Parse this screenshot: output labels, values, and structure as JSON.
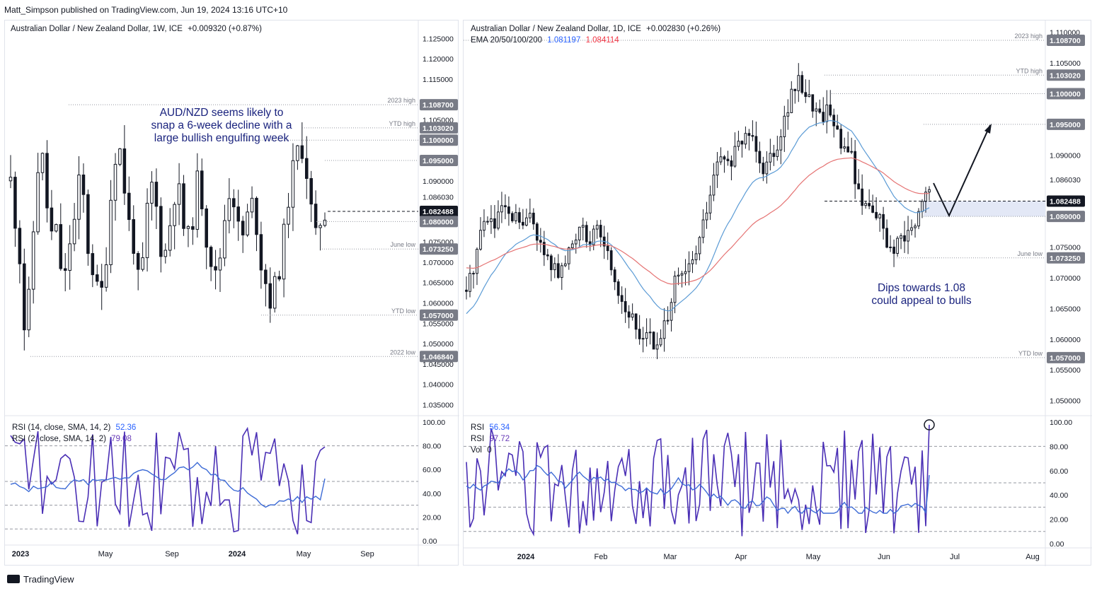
{
  "publisher": "Matt_Simpson published on TradingView.com, Jun 19, 2024 13:16 UTC+10",
  "footer_brand": "TradingView",
  "colors": {
    "up": "#131722",
    "down": "#131722",
    "ema20": "#5b9bd5",
    "ema50": "#e57373",
    "rsi14": "#3d6bd6",
    "rsi2": "#4a2fb5",
    "price_label_bg": "#787b86",
    "current_label_bg": "#131722",
    "zone": "#e3e8f6"
  },
  "left": {
    "title": "Australian Dollar / New Zealand Dollar, 1W, ICE",
    "change": "+0.009320 (+0.87%)",
    "annotation": [
      "AUD/NZD seems likely to",
      "snap a 6-week decline with a",
      "large bullish engulfing week"
    ],
    "y_ticks": [
      "1.125000",
      "1.120000",
      "1.115000",
      "1.105000",
      "1.090000",
      "1.086030",
      "1.075000",
      "1.070000",
      "1.065000",
      "1.060000",
      "1.055000",
      "1.050000",
      "1.045000",
      "1.040000",
      "1.035000"
    ],
    "levels": [
      {
        "name": "2023 high",
        "value": "1.108700"
      },
      {
        "name": "YTD high",
        "value": "1.103020"
      },
      {
        "name": "",
        "value": "1.100000"
      },
      {
        "name": "",
        "value": "1.095000"
      },
      {
        "name": "",
        "value": "1.082488"
      },
      {
        "name": "",
        "value": "1.080000"
      },
      {
        "name": "June low",
        "value": "1.073250"
      },
      {
        "name": "YTD low",
        "value": "1.057000"
      },
      {
        "name": "2022 low",
        "value": "1.046840"
      }
    ],
    "x_ticks": [
      "2023",
      "May",
      "Sep",
      "2024",
      "May",
      "Sep"
    ],
    "rsi_legend": [
      {
        "label": "RSI (14, close, SMA, 14, 2)",
        "value": "52.36"
      },
      {
        "label": "RSI (2, close, SMA, 14, 2)",
        "value": "79.08"
      }
    ],
    "rsi_ticks": [
      "100.00",
      "80.00",
      "60.00",
      "40.00",
      "20.00",
      "0.00"
    ]
  },
  "right": {
    "title": "Australian Dollar / New Zealand Dollar, 1D, ICE",
    "change": "+0.002830 (+0.26%)",
    "ema_label": "EMA 20/50/100/200",
    "ema_values": [
      "1.081197",
      "1.084114"
    ],
    "annotation": [
      "Dips towards 1.08",
      "could appeal to bulls"
    ],
    "y_ticks": [
      "1.110000",
      "1.105000",
      "1.090000",
      "1.086030",
      "1.075000",
      "1.070000",
      "1.065000",
      "1.060000",
      "1.055000",
      "1.050000"
    ],
    "levels": [
      {
        "name": "2023 high",
        "value": "1.108700"
      },
      {
        "name": "YTD high",
        "value": "1.103020"
      },
      {
        "name": "",
        "value": "1.100000"
      },
      {
        "name": "",
        "value": "1.095000"
      },
      {
        "name": "",
        "value": "1.082488"
      },
      {
        "name": "",
        "value": "1.080000"
      },
      {
        "name": "June low",
        "value": "1.073250"
      },
      {
        "name": "YTD low",
        "value": "1.057000"
      }
    ],
    "x_ticks": [
      "2024",
      "Feb",
      "Mar",
      "Apr",
      "May",
      "Jun",
      "Jul",
      "Aug"
    ],
    "rsi_legend": [
      {
        "label": "RSI",
        "value": "56.34"
      },
      {
        "label": "RSI",
        "value": "97.72"
      },
      {
        "label": "Vol",
        "value": "0"
      }
    ],
    "rsi_ticks": [
      "100.00",
      "80.00",
      "60.00",
      "40.00",
      "20.00",
      "0.00"
    ]
  },
  "chart_data": [
    {
      "type": "candlestick",
      "title": "Australian Dollar / New Zealand Dollar, 1W, ICE",
      "timeframe": "1W",
      "ylim": [
        1.033,
        1.128
      ],
      "x": [
        "2023",
        "May",
        "Sep",
        "2024",
        "May",
        "Sep"
      ],
      "levels": [
        1.1087,
        1.10302,
        1.1,
        1.095,
        1.082488,
        1.08,
        1.07325,
        1.057,
        1.04684
      ],
      "close_path": [
        1.09,
        1.08,
        1.07,
        1.05,
        1.065,
        1.085,
        1.1,
        1.09,
        1.075,
        1.08,
        1.07,
        1.065,
        1.075,
        1.08,
        1.09,
        1.085,
        1.07,
        1.068,
        1.06,
        1.065,
        1.08,
        1.095,
        1.1,
        1.09,
        1.08,
        1.075,
        1.065,
        1.07,
        1.085,
        1.09,
        1.08,
        1.07,
        1.075,
        1.085,
        1.09,
        1.08,
        1.075,
        1.08,
        1.09,
        1.085,
        1.075,
        1.07,
        1.065,
        1.075,
        1.085,
        1.09,
        1.08,
        1.075,
        1.08,
        1.085,
        1.08,
        1.07,
        1.065,
        1.06,
        1.065,
        1.07,
        1.08,
        1.09,
        1.095,
        1.1,
        1.095,
        1.085,
        1.075,
        1.08,
        1.082
      ],
      "rsi14_last": 52.36,
      "rsi2_last": 79.08
    },
    {
      "type": "candlestick",
      "title": "Australian Dollar / New Zealand Dollar, 1D, ICE",
      "timeframe": "1D",
      "ylim": [
        1.048,
        1.111
      ],
      "x": [
        "2024",
        "Feb",
        "Mar",
        "Apr",
        "May",
        "Jun",
        "Jul",
        "Aug"
      ],
      "levels": [
        1.1087,
        1.10302,
        1.1,
        1.095,
        1.082488,
        1.08,
        1.07325,
        1.057
      ],
      "zone": [
        1.08,
        1.0825
      ],
      "ema": [
        {
          "period": 20,
          "last": 1.081197
        },
        {
          "period": 50,
          "last": 1.084114
        }
      ],
      "close_path": [
        1.068,
        1.072,
        1.078,
        1.08,
        1.078,
        1.082,
        1.079,
        1.08,
        1.078,
        1.081,
        1.076,
        1.073,
        1.072,
        1.07,
        1.074,
        1.076,
        1.08,
        1.075,
        1.078,
        1.076,
        1.072,
        1.068,
        1.065,
        1.063,
        1.06,
        1.062,
        1.058,
        1.06,
        1.065,
        1.07,
        1.07,
        1.072,
        1.075,
        1.08,
        1.085,
        1.09,
        1.088,
        1.09,
        1.092,
        1.094,
        1.092,
        1.088,
        1.09,
        1.092,
        1.096,
        1.1,
        1.102,
        1.1,
        1.098,
        1.096,
        1.098,
        1.095,
        1.09,
        1.092,
        1.084,
        1.082,
        1.082,
        1.08,
        1.076,
        1.074,
        1.076,
        1.077,
        1.078,
        1.082,
        1.085
      ],
      "rsi14_last": 56.34,
      "rsi2_last": 97.72
    }
  ]
}
